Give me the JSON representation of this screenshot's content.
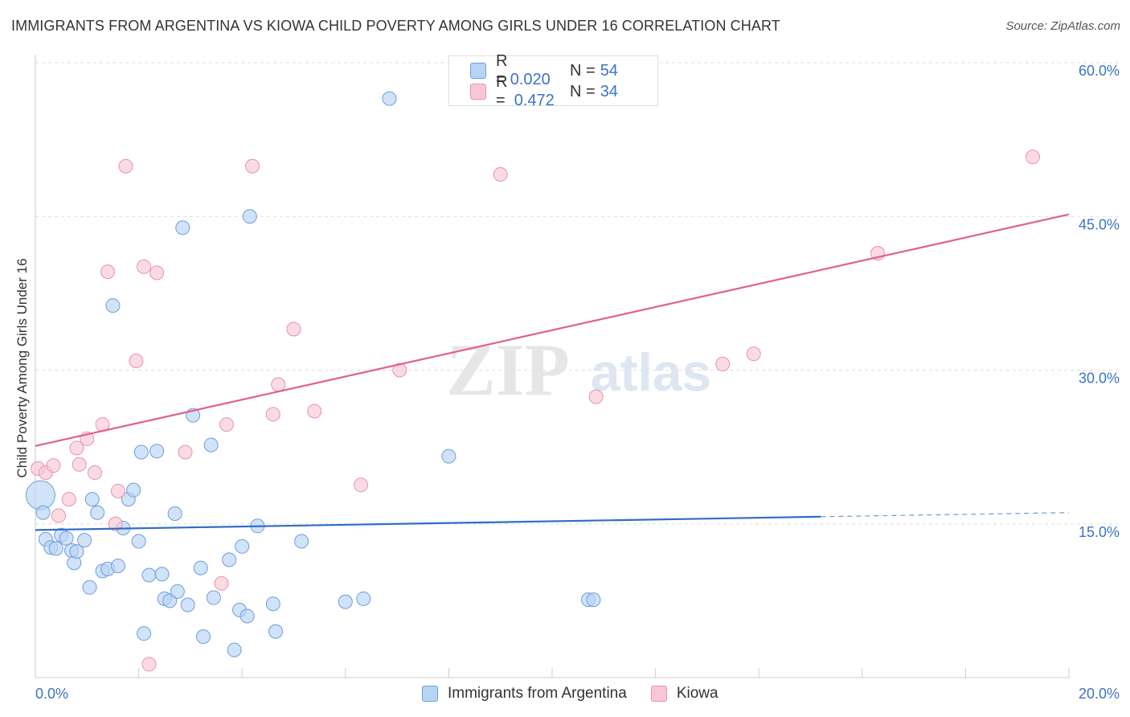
{
  "title": "IMMIGRANTS FROM ARGENTINA VS KIOWA CHILD POVERTY AMONG GIRLS UNDER 16 CORRELATION CHART",
  "source": "Source: ZipAtlas.com",
  "watermark": {
    "zip": "ZIP",
    "atlas": "atlas"
  },
  "legend": {
    "rows": [
      {
        "r_label": "R =",
        "r_value": "0.020",
        "n_label": "N =",
        "n_value": "54"
      },
      {
        "r_label": "R =",
        "r_value": "0.472",
        "n_label": "N =",
        "n_value": "34"
      }
    ]
  },
  "colors": {
    "blue_fill": "#b8d4f5",
    "blue_stroke": "#6c9edc",
    "blue_line": "#2f6ec7",
    "pink_fill": "#f8c7d5",
    "pink_stroke": "#e892ad",
    "pink_line": "#e0608c",
    "axis_text": "#3b74c6",
    "grid": "#dddddd"
  },
  "chart_data": {
    "type": "scatter",
    "title": "IMMIGRANTS FROM ARGENTINA VS KIOWA CHILD POVERTY AMONG GIRLS UNDER 16 CORRELATION CHART",
    "xlabel": "",
    "ylabel": "Child Poverty Among Girls Under 16",
    "xlim": [
      0,
      20
    ],
    "ylim": [
      0,
      60
    ],
    "x_tick_labels": [
      "0.0%",
      "20.0%"
    ],
    "y_ticks": [
      15,
      30,
      45,
      60
    ],
    "y_tick_labels": [
      "15.0%",
      "30.0%",
      "45.0%",
      "60.0%"
    ],
    "grid": true,
    "legend_position": "top-center",
    "series": [
      {
        "name": "Immigrants from Argentina",
        "color": "#b8d4f5",
        "points": [
          [
            0.1,
            17.8
          ],
          [
            0.15,
            16.1
          ],
          [
            0.2,
            13.5
          ],
          [
            0.3,
            12.7
          ],
          [
            0.4,
            12.6
          ],
          [
            0.5,
            13.9
          ],
          [
            0.6,
            13.6
          ],
          [
            0.7,
            12.4
          ],
          [
            0.75,
            11.2
          ],
          [
            0.8,
            12.3
          ],
          [
            0.95,
            13.4
          ],
          [
            1.05,
            8.8
          ],
          [
            1.1,
            17.4
          ],
          [
            1.2,
            16.1
          ],
          [
            1.3,
            10.4
          ],
          [
            1.4,
            10.6
          ],
          [
            1.5,
            36.3
          ],
          [
            1.6,
            10.9
          ],
          [
            1.7,
            14.6
          ],
          [
            1.8,
            17.4
          ],
          [
            1.9,
            18.3
          ],
          [
            2.0,
            13.3
          ],
          [
            2.05,
            22.0
          ],
          [
            2.1,
            4.3
          ],
          [
            2.2,
            10.0
          ],
          [
            2.35,
            22.1
          ],
          [
            2.45,
            10.1
          ],
          [
            2.5,
            7.7
          ],
          [
            2.6,
            7.5
          ],
          [
            2.7,
            16.0
          ],
          [
            2.75,
            8.4
          ],
          [
            2.85,
            43.9
          ],
          [
            2.95,
            7.1
          ],
          [
            3.05,
            25.6
          ],
          [
            3.2,
            10.7
          ],
          [
            3.25,
            4.0
          ],
          [
            3.4,
            22.7
          ],
          [
            3.45,
            7.8
          ],
          [
            3.75,
            11.5
          ],
          [
            3.85,
            2.7
          ],
          [
            3.95,
            6.6
          ],
          [
            4.0,
            12.8
          ],
          [
            4.1,
            6.0
          ],
          [
            4.15,
            45.0
          ],
          [
            4.3,
            14.8
          ],
          [
            4.6,
            7.2
          ],
          [
            4.65,
            4.5
          ],
          [
            5.15,
            13.3
          ],
          [
            6.0,
            7.4
          ],
          [
            6.35,
            7.7
          ],
          [
            6.85,
            56.5
          ],
          [
            8.0,
            21.6
          ],
          [
            10.7,
            7.6
          ],
          [
            10.8,
            7.6
          ]
        ],
        "trend": {
          "x": [
            0,
            15.2
          ],
          "y": [
            14.4,
            15.7
          ]
        },
        "trend_dashed": {
          "x": [
            15.2,
            20
          ],
          "y": [
            15.7,
            16.1
          ]
        }
      },
      {
        "name": "Kiowa",
        "color": "#f8c7d5",
        "points": [
          [
            0.05,
            20.4
          ],
          [
            0.2,
            20.0
          ],
          [
            0.35,
            20.7
          ],
          [
            0.45,
            15.8
          ],
          [
            0.65,
            17.4
          ],
          [
            0.8,
            22.4
          ],
          [
            0.85,
            20.8
          ],
          [
            1.0,
            23.3
          ],
          [
            1.15,
            20.0
          ],
          [
            1.3,
            24.7
          ],
          [
            1.4,
            39.6
          ],
          [
            1.55,
            15.0
          ],
          [
            1.6,
            18.2
          ],
          [
            1.75,
            49.9
          ],
          [
            1.95,
            30.9
          ],
          [
            2.1,
            40.1
          ],
          [
            2.2,
            1.3
          ],
          [
            2.35,
            39.5
          ],
          [
            2.9,
            22.0
          ],
          [
            3.7,
            24.7
          ],
          [
            3.6,
            9.2
          ],
          [
            4.2,
            49.9
          ],
          [
            4.6,
            25.7
          ],
          [
            4.7,
            28.6
          ],
          [
            5.0,
            34.0
          ],
          [
            5.4,
            26.0
          ],
          [
            6.3,
            18.8
          ],
          [
            7.05,
            30.0
          ],
          [
            9.0,
            49.1
          ],
          [
            10.85,
            27.4
          ],
          [
            13.3,
            30.6
          ],
          [
            13.9,
            31.6
          ],
          [
            16.3,
            41.4
          ],
          [
            19.3,
            50.8
          ]
        ],
        "trend": {
          "x": [
            0,
            20
          ],
          "y": [
            22.6,
            45.2
          ]
        }
      }
    ]
  },
  "bottom_legend": [
    {
      "label": "Immigrants from Argentina"
    },
    {
      "label": "Kiowa"
    }
  ]
}
